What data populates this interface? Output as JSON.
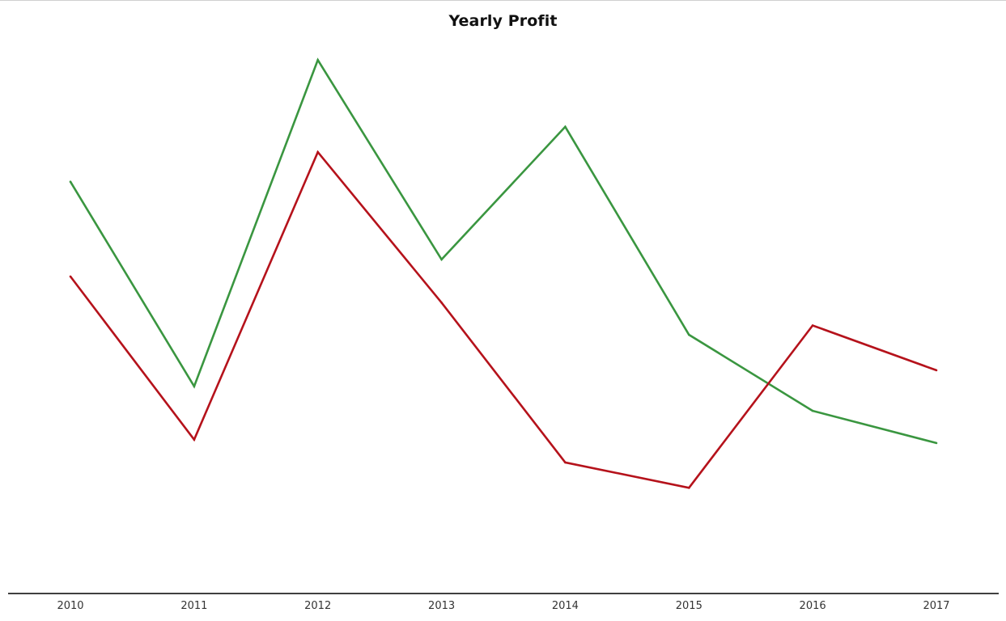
{
  "chart_data": {
    "type": "line",
    "title": "Yearly Profit",
    "xlabel": "",
    "ylabel": "",
    "categories": [
      "2010",
      "2011",
      "2012",
      "2013",
      "2014",
      "2015",
      "2016",
      "2017"
    ],
    "series": [
      {
        "color": "#3a9640",
        "values": [
          487,
          245,
          631,
          395,
          552,
          306,
          216,
          178
        ]
      },
      {
        "color": "#b5121b",
        "values": [
          375,
          182,
          522,
          344,
          155,
          125,
          317,
          264
        ]
      }
    ],
    "ylim": [
      0,
      700
    ],
    "grid": false,
    "legend": "none"
  }
}
